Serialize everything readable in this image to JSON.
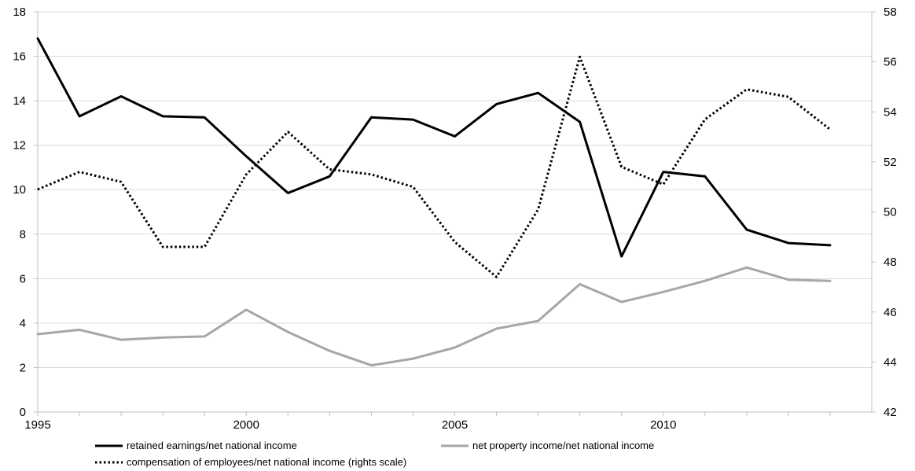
{
  "chart_data": {
    "type": "line",
    "x": [
      1995,
      1996,
      1997,
      1998,
      1999,
      2000,
      2001,
      2002,
      2003,
      2004,
      2005,
      2006,
      2007,
      2008,
      2009,
      2010,
      2011,
      2012,
      2013,
      2014
    ],
    "x_ticks": [
      1995,
      2000,
      2005,
      2010
    ],
    "xlim": [
      1995,
      2015
    ],
    "ylim_left": [
      0,
      18
    ],
    "y_ticks_left": [
      0,
      2,
      4,
      6,
      8,
      10,
      12,
      14,
      16,
      18
    ],
    "ylim_right": [
      42,
      58
    ],
    "y_ticks_right": [
      42,
      44,
      46,
      48,
      50,
      52,
      54,
      56,
      58
    ],
    "grid": "horizontal",
    "legend_position": "bottom",
    "series": [
      {
        "name": "retained earnings/net national income",
        "axis": "left",
        "color": "#000000",
        "style": "solid",
        "values": [
          16.8,
          13.3,
          14.2,
          13.3,
          13.25,
          11.5,
          9.85,
          10.6,
          13.25,
          13.15,
          12.4,
          13.85,
          14.35,
          13.05,
          7.0,
          10.8,
          10.6,
          8.2,
          7.6,
          7.5
        ]
      },
      {
        "name": "net property income/net national income",
        "axis": "left",
        "color": "#a6a6a6",
        "style": "solid",
        "values": [
          3.5,
          3.7,
          3.25,
          3.35,
          3.4,
          4.6,
          3.6,
          2.75,
          2.1,
          2.4,
          2.9,
          3.75,
          4.1,
          5.75,
          4.95,
          5.4,
          5.9,
          6.5,
          5.95,
          5.9
        ]
      },
      {
        "name": "compensation of employees/net national income (rights scale)",
        "axis": "right",
        "color": "#000000",
        "style": "dotted",
        "values": [
          50.9,
          51.6,
          51.2,
          48.6,
          48.6,
          51.5,
          53.2,
          51.7,
          51.5,
          51.0,
          48.8,
          47.4,
          50.1,
          56.2,
          51.8,
          51.1,
          53.7,
          54.9,
          54.6,
          53.3
        ]
      }
    ]
  }
}
